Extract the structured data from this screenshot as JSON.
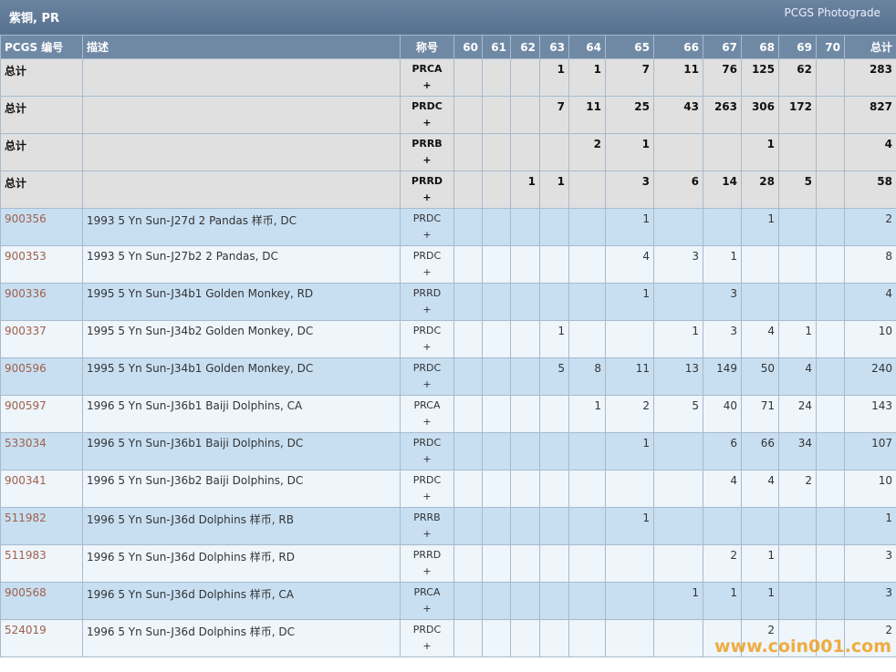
{
  "header": {
    "title": "紫铜, PR",
    "link": "PCGS Photograde"
  },
  "table": {
    "columns": [
      "PCGS 编号",
      "描述",
      "称号",
      "60",
      "61",
      "62",
      "63",
      "64",
      "65",
      "66",
      "67",
      "68",
      "69",
      "70",
      "总计"
    ],
    "total_rows": [
      {
        "id": "总计",
        "designation": "PRCA",
        "plus": "+",
        "counts": [
          null,
          null,
          null,
          1,
          1,
          7,
          11,
          76,
          125,
          62,
          null
        ],
        "total": 283
      },
      {
        "id": "总计",
        "designation": "PRDC",
        "plus": "+",
        "counts": [
          null,
          null,
          null,
          7,
          11,
          25,
          43,
          263,
          306,
          172,
          null
        ],
        "total": 827
      },
      {
        "id": "总计",
        "designation": "PRRB",
        "plus": "+",
        "counts": [
          null,
          null,
          null,
          null,
          2,
          1,
          null,
          null,
          1,
          null,
          null
        ],
        "total": 4
      },
      {
        "id": "总计",
        "designation": "PRRD",
        "plus": "+",
        "counts": [
          null,
          null,
          1,
          1,
          null,
          3,
          6,
          14,
          28,
          5,
          null
        ],
        "total": 58
      }
    ],
    "rows": [
      {
        "id": "900356",
        "description": "1993 5 Yn Sun-J27d 2 Pandas 样币, DC",
        "designation": "PRDC",
        "plus": "+",
        "counts": [
          null,
          null,
          null,
          null,
          null,
          1,
          null,
          null,
          1,
          null,
          null
        ],
        "total": 2
      },
      {
        "id": "900353",
        "description": "1993 5 Yn Sun-J27b2 2 Pandas, DC",
        "designation": "PRDC",
        "plus": "+",
        "counts": [
          null,
          null,
          null,
          null,
          null,
          4,
          3,
          1,
          null,
          null,
          null
        ],
        "total": 8
      },
      {
        "id": "900336",
        "description": "1995 5 Yn Sun-J34b1 Golden Monkey, RD",
        "designation": "PRRD",
        "plus": "+",
        "counts": [
          null,
          null,
          null,
          null,
          null,
          1,
          null,
          3,
          null,
          null,
          null
        ],
        "total": 4
      },
      {
        "id": "900337",
        "description": "1995 5 Yn Sun-J34b2 Golden Monkey, DC",
        "designation": "PRDC",
        "plus": "+",
        "counts": [
          null,
          null,
          null,
          1,
          null,
          null,
          1,
          3,
          4,
          1,
          null
        ],
        "total": 10
      },
      {
        "id": "900596",
        "description": "1995 5 Yn Sun-J34b1 Golden Monkey, DC",
        "designation": "PRDC",
        "plus": "+",
        "counts": [
          null,
          null,
          null,
          5,
          8,
          11,
          13,
          149,
          50,
          4,
          null
        ],
        "total": 240
      },
      {
        "id": "900597",
        "description": "1996 5 Yn Sun-J36b1 Baiji Dolphins, CA",
        "designation": "PRCA",
        "plus": "+",
        "counts": [
          null,
          null,
          null,
          null,
          1,
          2,
          5,
          40,
          71,
          24,
          null
        ],
        "total": 143
      },
      {
        "id": "533034",
        "description": "1996 5 Yn Sun-J36b1 Baiji Dolphins, DC",
        "designation": "PRDC",
        "plus": "+",
        "counts": [
          null,
          null,
          null,
          null,
          null,
          1,
          null,
          6,
          66,
          34,
          null
        ],
        "total": 107
      },
      {
        "id": "900341",
        "description": "1996 5 Yn Sun-J36b2 Baiji Dolphins, DC",
        "designation": "PRDC",
        "plus": "+",
        "counts": [
          null,
          null,
          null,
          null,
          null,
          null,
          null,
          4,
          4,
          2,
          null
        ],
        "total": 10
      },
      {
        "id": "511982",
        "description": "1996 5 Yn Sun-J36d Dolphins 样币, RB",
        "designation": "PRRB",
        "plus": "+",
        "counts": [
          null,
          null,
          null,
          null,
          null,
          1,
          null,
          null,
          null,
          null,
          null
        ],
        "total": 1
      },
      {
        "id": "511983",
        "description": "1996 5 Yn Sun-J36d Dolphins 样币, RD",
        "designation": "PRRD",
        "plus": "+",
        "counts": [
          null,
          null,
          null,
          null,
          null,
          null,
          null,
          2,
          1,
          null,
          null
        ],
        "total": 3
      },
      {
        "id": "900568",
        "description": "1996 5 Yn Sun-J36d Dolphins 样币, CA",
        "designation": "PRCA",
        "plus": "+",
        "counts": [
          null,
          null,
          null,
          null,
          null,
          null,
          1,
          1,
          1,
          null,
          null
        ],
        "total": 3
      },
      {
        "id": "524019",
        "description": "1996 5 Yn Sun-J36d Dolphins 样币, DC",
        "designation": "PRDC",
        "plus": "+",
        "counts": [
          null,
          null,
          null,
          null,
          null,
          null,
          null,
          null,
          2,
          null,
          null
        ],
        "total": 2
      }
    ]
  },
  "watermark": "www.coin001.com"
}
